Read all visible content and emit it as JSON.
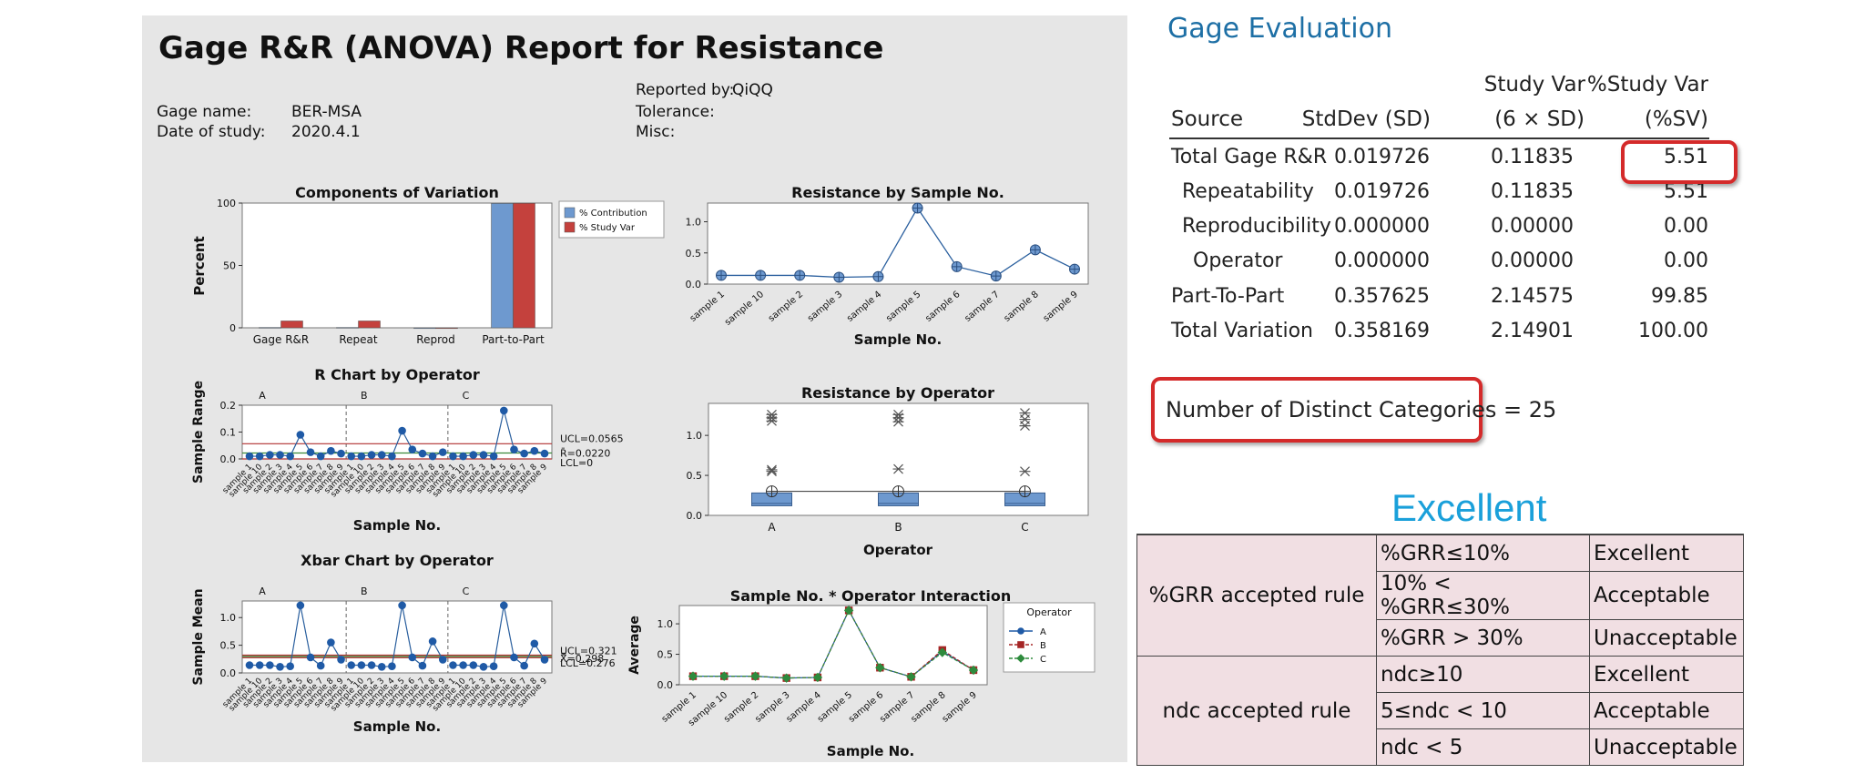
{
  "report": {
    "title": "Gage R&R (ANOVA) Report for Resistance",
    "gage_name_label": "Gage name:",
    "gage_name": "BER-MSA",
    "date_label": "Date of study:",
    "date": "2020.4.1",
    "reported_by_label": "Reported by:",
    "reported_by": "QiQQ",
    "tolerance_label": "Tolerance:",
    "misc_label": "Misc:"
  },
  "chart_data": [
    {
      "id": "components",
      "type": "bar",
      "title": "Components of Variation",
      "ylabel": "Percent",
      "xlabel": "",
      "categories": [
        "Gage R&R",
        "Repeat",
        "Reprod",
        "Part-to-Part"
      ],
      "series": [
        {
          "name": "% Contribution",
          "values": [
            0.3,
            0.3,
            0,
            99.7
          ],
          "color": "#6e99cf"
        },
        {
          "name": "% Study Var",
          "values": [
            5.51,
            5.51,
            0,
            99.85
          ],
          "color": "#c4413d"
        }
      ],
      "ylim": [
        0,
        100
      ],
      "yticks": [
        0,
        50,
        100
      ],
      "legend": "right"
    },
    {
      "id": "by_sample",
      "type": "line",
      "title": "Resistance by Sample No.",
      "xlabel": "Sample No.",
      "ylabel": "",
      "categories": [
        "sample 1",
        "sample 10",
        "sample 2",
        "sample 3",
        "sample 4",
        "sample 5",
        "sample 6",
        "sample 7",
        "sample 8",
        "sample 9"
      ],
      "values": [
        0.14,
        0.14,
        0.14,
        0.11,
        0.12,
        1.22,
        0.28,
        0.13,
        0.55,
        0.24
      ],
      "ylim": [
        0,
        1.3
      ],
      "yticks": [
        0.0,
        0.5,
        1.0
      ],
      "color": "#2a5f9e"
    },
    {
      "id": "r_chart",
      "type": "line",
      "title": "R Chart by Operator",
      "xlabel": "Sample No.",
      "ylabel": "Sample Range",
      "groups": [
        "A",
        "B",
        "C"
      ],
      "x_ticklabels": [
        "sample 1",
        "sample 10",
        "sample 2",
        "sample 3",
        "sample 4",
        "sample 5",
        "sample 6",
        "sample 7",
        "sample 8",
        "sample 9"
      ],
      "values": [
        0.01,
        0.01,
        0.015,
        0.015,
        0.01,
        0.09,
        0.025,
        0.01,
        0.03,
        0.02,
        0.01,
        0.01,
        0.015,
        0.015,
        0.01,
        0.105,
        0.035,
        0.02,
        0.01,
        0.025,
        0.01,
        0.01,
        0.015,
        0.015,
        0.01,
        0.18,
        0.035,
        0.02,
        0.03,
        0.02
      ],
      "ucl": 0.0565,
      "center": 0.022,
      "lcl": 0,
      "ucl_label": "UCL=0.0565",
      "center_label": "R̄=0.0220",
      "lcl_label": "LCL=0",
      "ylim": [
        0,
        0.2
      ],
      "yticks": [
        0.0,
        0.1,
        0.2
      ]
    },
    {
      "id": "by_operator",
      "type": "box",
      "title": "Resistance by Operator",
      "xlabel": "Operator",
      "ylabel": "",
      "categories": [
        "A",
        "B",
        "C"
      ],
      "box": [
        {
          "q1": 0.12,
          "q3": 0.28,
          "median": 0.15,
          "mean": 0.3
        },
        {
          "q1": 0.12,
          "q3": 0.28,
          "median": 0.15,
          "mean": 0.3
        },
        {
          "q1": 0.12,
          "q3": 0.28,
          "median": 0.15,
          "mean": 0.3
        }
      ],
      "outliers": [
        [
          0.55,
          0.57,
          1.18,
          1.22,
          1.26
        ],
        [
          0.58,
          1.17,
          1.22,
          1.26
        ],
        [
          0.55,
          1.12,
          1.2,
          1.28
        ]
      ],
      "ylim": [
        0,
        1.4
      ],
      "yticks": [
        0.0,
        0.5,
        1.0
      ]
    },
    {
      "id": "xbar_chart",
      "type": "line",
      "title": "Xbar Chart by Operator",
      "xlabel": "Sample No.",
      "ylabel": "Sample Mean",
      "groups": [
        "A",
        "B",
        "C"
      ],
      "x_ticklabels": [
        "sample 1",
        "sample 10",
        "sample 2",
        "sample 3",
        "sample 4",
        "sample 5",
        "sample 6",
        "sample 7",
        "sample 8",
        "sample 9"
      ],
      "values": [
        0.14,
        0.14,
        0.14,
        0.11,
        0.12,
        1.22,
        0.28,
        0.13,
        0.55,
        0.24,
        0.14,
        0.14,
        0.14,
        0.11,
        0.12,
        1.22,
        0.28,
        0.13,
        0.57,
        0.24,
        0.14,
        0.14,
        0.14,
        0.11,
        0.12,
        1.22,
        0.28,
        0.13,
        0.53,
        0.24
      ],
      "ucl": 0.321,
      "center": 0.298,
      "lcl": 0.276,
      "ucl_label": "UCL=0.321",
      "center_label": "X̿=0.298",
      "lcl_label": "LCL=0.276",
      "ylim": [
        0,
        1.3
      ],
      "yticks": [
        0.0,
        0.5,
        1.0
      ]
    },
    {
      "id": "interaction",
      "type": "line",
      "title": "Sample No. * Operator Interaction",
      "xlabel": "Sample No.",
      "ylabel": "Average",
      "categories": [
        "sample 1",
        "sample 10",
        "sample 2",
        "sample 3",
        "sample 4",
        "sample 5",
        "sample 6",
        "sample 7",
        "sample 8",
        "sample 9"
      ],
      "series": [
        {
          "name": "A",
          "values": [
            0.14,
            0.14,
            0.14,
            0.11,
            0.12,
            1.22,
            0.28,
            0.13,
            0.55,
            0.24
          ],
          "color": "#1f5aa6",
          "marker": "circle"
        },
        {
          "name": "B",
          "values": [
            0.14,
            0.14,
            0.14,
            0.11,
            0.12,
            1.22,
            0.28,
            0.13,
            0.57,
            0.24
          ],
          "color": "#a52525",
          "marker": "square"
        },
        {
          "name": "C",
          "values": [
            0.14,
            0.14,
            0.14,
            0.11,
            0.12,
            1.22,
            0.28,
            0.13,
            0.53,
            0.24
          ],
          "color": "#2e8b3d",
          "marker": "diamond"
        }
      ],
      "legend_title": "Operator",
      "ylim": [
        0,
        1.3
      ],
      "yticks": [
        0.0,
        0.5,
        1.0
      ]
    }
  ],
  "gage_eval": {
    "title": "Gage Evaluation",
    "headers": {
      "source": "Source",
      "stddev": "StdDev (SD)",
      "studyvar_1": "Study Var",
      "studyvar_2": "(6 × SD)",
      "pct_1": "%Study Var",
      "pct_2": "(%SV)"
    },
    "rows": [
      {
        "source": "Total Gage R&R",
        "sd": "0.019726",
        "sv": "0.11835",
        "pct": "5.51"
      },
      {
        "source": "Repeatability",
        "sd": "0.019726",
        "sv": "0.11835",
        "pct": "5.51"
      },
      {
        "source": "Reproducibility",
        "sd": "0.000000",
        "sv": "0.00000",
        "pct": "0.00"
      },
      {
        "source": "Operator",
        "sd": "0.000000",
        "sv": "0.00000",
        "pct": "0.00"
      },
      {
        "source": "Part-To-Part",
        "sd": "0.357625",
        "sv": "2.14575",
        "pct": "99.85"
      },
      {
        "source": "Total Variation",
        "sd": "0.358169",
        "sv": "2.14901",
        "pct": "100.00"
      }
    ],
    "ndc": "Number of Distinct Categories = 25"
  },
  "verdict": "Excellent",
  "rules": {
    "grr_label": "%GRR accepted rule",
    "grr": [
      {
        "cond": "%GRR≤10%",
        "result": "Excellent"
      },
      {
        "cond": "10% < %GRR≤30%",
        "result": "Acceptable"
      },
      {
        "cond": "%GRR > 30%",
        "result": "Unacceptable"
      }
    ],
    "ndc_label": "ndc accepted rule",
    "ndc": [
      {
        "cond": "ndc≥10",
        "result": "Excellent"
      },
      {
        "cond": "5≤ndc < 10",
        "result": "Acceptable"
      },
      {
        "cond": "ndc < 5",
        "result": "Unacceptable"
      }
    ]
  },
  "colors": {
    "accent_red": "#d42a2a",
    "title_blue": "#1d6fa5",
    "excellent_blue": "#1aa0da",
    "rules_bg": "#f1dfe3"
  }
}
